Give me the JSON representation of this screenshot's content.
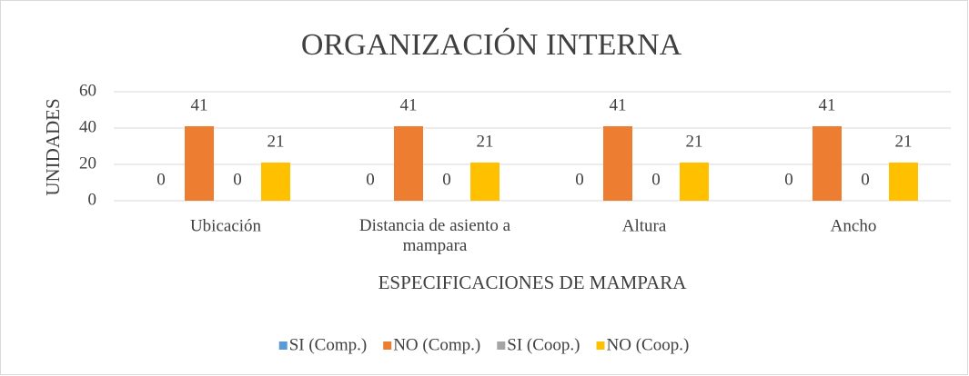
{
  "chart_data": {
    "type": "bar",
    "title": "ORGANIZACIÓN INTERNA",
    "x_label": "ESPECIFICACIONES DE MAMPARA",
    "y_label": "UNIDADES",
    "categories": [
      "Ubicación",
      "Distancia de asiento a mampara",
      "Altura",
      "Ancho"
    ],
    "series": [
      {
        "name": "SI (Comp.)",
        "color": "#5b9bd5",
        "values": [
          0,
          0,
          0,
          0
        ]
      },
      {
        "name": "NO (Comp.)",
        "color": "#ed7d31",
        "values": [
          41,
          41,
          41,
          41
        ]
      },
      {
        "name": "SI (Coop.)",
        "color": "#a5a5a5",
        "values": [
          0,
          0,
          0,
          0
        ]
      },
      {
        "name": "NO (Coop.)",
        "color": "#ffc000",
        "values": [
          21,
          21,
          21,
          21
        ]
      }
    ],
    "ylim": [
      0,
      60
    ],
    "yticks": [
      0,
      20,
      40,
      60
    ],
    "grid": true,
    "data_labels": true,
    "legend": "bottom"
  }
}
